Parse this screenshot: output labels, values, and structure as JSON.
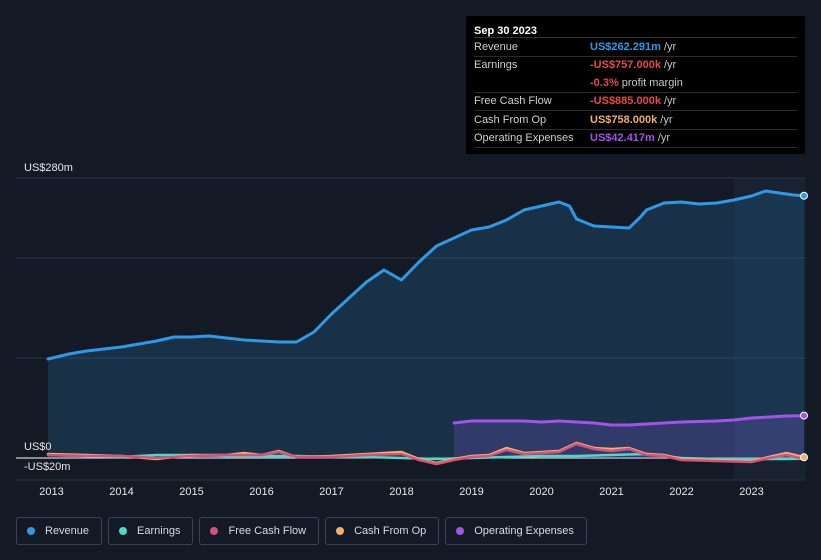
{
  "chart_data": {
    "type": "area",
    "y_top_label": "US$280m",
    "y_zero_label": "US$0",
    "y_neg_label": "-US$20m",
    "ylim": [
      -20,
      280
    ],
    "x_ticks": [
      "2013",
      "2014",
      "2015",
      "2016",
      "2017",
      "2018",
      "2019",
      "2020",
      "2021",
      "2022",
      "2023"
    ],
    "x_range": [
      2012.95,
      2023.75
    ],
    "highlight_start": 2022.75,
    "series": [
      {
        "name": "Revenue",
        "color": "#2e9ae6",
        "fill": true,
        "points": [
          [
            2012.95,
            99
          ],
          [
            2013.25,
            104
          ],
          [
            2013.5,
            107
          ],
          [
            2013.75,
            109
          ],
          [
            2014.0,
            111
          ],
          [
            2014.25,
            114
          ],
          [
            2014.5,
            117
          ],
          [
            2014.75,
            121
          ],
          [
            2015.0,
            121
          ],
          [
            2015.25,
            122
          ],
          [
            2015.5,
            120
          ],
          [
            2015.75,
            118
          ],
          [
            2016.0,
            117
          ],
          [
            2016.25,
            116
          ],
          [
            2016.5,
            116
          ],
          [
            2016.75,
            126
          ],
          [
            2017.0,
            144
          ],
          [
            2017.25,
            160
          ],
          [
            2017.5,
            176
          ],
          [
            2017.75,
            188
          ],
          [
            2018.0,
            178
          ],
          [
            2018.25,
            196
          ],
          [
            2018.5,
            212
          ],
          [
            2018.75,
            220
          ],
          [
            2019.0,
            228
          ],
          [
            2019.25,
            231
          ],
          [
            2019.5,
            238
          ],
          [
            2019.75,
            248
          ],
          [
            2020.0,
            252
          ],
          [
            2020.25,
            256
          ],
          [
            2020.4,
            252
          ],
          [
            2020.5,
            239
          ],
          [
            2020.75,
            232
          ],
          [
            2021.0,
            231
          ],
          [
            2021.25,
            230
          ],
          [
            2021.4,
            240
          ],
          [
            2021.5,
            248
          ],
          [
            2021.75,
            255
          ],
          [
            2022.0,
            256
          ],
          [
            2022.25,
            254
          ],
          [
            2022.5,
            255
          ],
          [
            2022.75,
            258
          ],
          [
            2023.0,
            262
          ],
          [
            2023.2,
            267
          ],
          [
            2023.4,
            265
          ],
          [
            2023.6,
            263
          ],
          [
            2023.75,
            262.3
          ]
        ]
      },
      {
        "name": "Earnings",
        "color": "#4fd9c4",
        "fill": false,
        "points": [
          [
            2012.95,
            3
          ],
          [
            2013.5,
            2
          ],
          [
            2014.0,
            1
          ],
          [
            2014.5,
            3
          ],
          [
            2015.0,
            3
          ],
          [
            2015.5,
            2
          ],
          [
            2016.0,
            2
          ],
          [
            2016.5,
            2
          ],
          [
            2017.0,
            1
          ],
          [
            2017.5,
            1
          ],
          [
            2018.0,
            0
          ],
          [
            2018.5,
            -1
          ],
          [
            2019.0,
            0
          ],
          [
            2019.5,
            1
          ],
          [
            2020.0,
            2
          ],
          [
            2020.5,
            2
          ],
          [
            2021.0,
            3
          ],
          [
            2021.5,
            4
          ],
          [
            2022.0,
            0
          ],
          [
            2022.5,
            -1
          ],
          [
            2023.0,
            -1
          ],
          [
            2023.5,
            -1
          ],
          [
            2023.75,
            -0.76
          ]
        ]
      },
      {
        "name": "Free Cash Flow",
        "color": "#d9507f",
        "fill": false,
        "points": [
          [
            2012.95,
            3
          ],
          [
            2013.5,
            2
          ],
          [
            2014.0,
            2
          ],
          [
            2014.5,
            0
          ],
          [
            2015.0,
            2
          ],
          [
            2015.5,
            3
          ],
          [
            2016.0,
            3
          ],
          [
            2016.25,
            6
          ],
          [
            2016.5,
            1
          ],
          [
            2017.0,
            1
          ],
          [
            2017.5,
            3
          ],
          [
            2018.0,
            4
          ],
          [
            2018.25,
            -2
          ],
          [
            2018.5,
            -6
          ],
          [
            2018.75,
            -2
          ],
          [
            2019.0,
            1
          ],
          [
            2019.25,
            2
          ],
          [
            2019.5,
            8
          ],
          [
            2019.75,
            4
          ],
          [
            2020.0,
            5
          ],
          [
            2020.25,
            6
          ],
          [
            2020.5,
            14
          ],
          [
            2020.75,
            9
          ],
          [
            2021.0,
            7
          ],
          [
            2021.25,
            9
          ],
          [
            2021.5,
            3
          ],
          [
            2021.75,
            2
          ],
          [
            2022.0,
            -2
          ],
          [
            2022.5,
            -3
          ],
          [
            2023.0,
            -4
          ],
          [
            2023.25,
            0
          ],
          [
            2023.5,
            3
          ],
          [
            2023.75,
            -0.89
          ]
        ]
      },
      {
        "name": "Cash From Op",
        "color": "#efb06a",
        "fill": false,
        "points": [
          [
            2012.95,
            4
          ],
          [
            2013.5,
            3
          ],
          [
            2014.0,
            2
          ],
          [
            2014.5,
            -1
          ],
          [
            2015.0,
            3
          ],
          [
            2015.5,
            3
          ],
          [
            2015.75,
            5
          ],
          [
            2016.0,
            3
          ],
          [
            2016.25,
            7
          ],
          [
            2016.5,
            1
          ],
          [
            2017.0,
            2
          ],
          [
            2017.5,
            4
          ],
          [
            2018.0,
            6
          ],
          [
            2018.25,
            -1
          ],
          [
            2018.5,
            -5
          ],
          [
            2018.75,
            -1
          ],
          [
            2019.0,
            2
          ],
          [
            2019.25,
            3
          ],
          [
            2019.5,
            10
          ],
          [
            2019.75,
            5
          ],
          [
            2020.0,
            6
          ],
          [
            2020.25,
            7
          ],
          [
            2020.5,
            15
          ],
          [
            2020.75,
            10
          ],
          [
            2021.0,
            9
          ],
          [
            2021.25,
            10
          ],
          [
            2021.5,
            4
          ],
          [
            2021.75,
            3
          ],
          [
            2022.0,
            -1
          ],
          [
            2022.5,
            -2
          ],
          [
            2023.0,
            -3
          ],
          [
            2023.25,
            1
          ],
          [
            2023.5,
            5
          ],
          [
            2023.75,
            0.76
          ]
        ]
      },
      {
        "name": "Operating Expenses",
        "color": "#a452ea",
        "fill": true,
        "points": [
          [
            2018.75,
            35
          ],
          [
            2019.0,
            37
          ],
          [
            2019.5,
            37
          ],
          [
            2019.75,
            37
          ],
          [
            2020.0,
            36
          ],
          [
            2020.25,
            37
          ],
          [
            2020.5,
            36
          ],
          [
            2020.75,
            35
          ],
          [
            2021.0,
            33
          ],
          [
            2021.25,
            33
          ],
          [
            2021.5,
            34
          ],
          [
            2022.0,
            36
          ],
          [
            2022.5,
            37
          ],
          [
            2022.75,
            38
          ],
          [
            2023.0,
            40
          ],
          [
            2023.25,
            41
          ],
          [
            2023.5,
            42
          ],
          [
            2023.75,
            42.4
          ]
        ]
      }
    ]
  },
  "tooltip": {
    "date": "Sep 30 2023",
    "rows": [
      {
        "label": "Revenue",
        "value": "US$262.291m",
        "unit": "/yr",
        "color": "#2e9ae6"
      },
      {
        "label": "Earnings",
        "value": "-US$757.000k",
        "unit": "/yr",
        "color": "#e54a4a"
      },
      {
        "label": "",
        "value": "-0.3%",
        "unit": "profit margin",
        "color": "#e54a4a"
      },
      {
        "label": "Free Cash Flow",
        "value": "-US$885.000k",
        "unit": "/yr",
        "color": "#e54a4a"
      },
      {
        "label": "Cash From Op",
        "value": "US$758.000k",
        "unit": "/yr",
        "color": "#efb06a"
      },
      {
        "label": "Operating Expenses",
        "value": "US$42.417m",
        "unit": "/yr",
        "color": "#a452ea"
      }
    ]
  },
  "legend": [
    {
      "label": "Revenue",
      "color": "#2e9ae6"
    },
    {
      "label": "Earnings",
      "color": "#4fd9c4"
    },
    {
      "label": "Free Cash Flow",
      "color": "#d9507f"
    },
    {
      "label": "Cash From Op",
      "color": "#efb06a"
    },
    {
      "label": "Operating Expenses",
      "color": "#a452ea"
    }
  ]
}
